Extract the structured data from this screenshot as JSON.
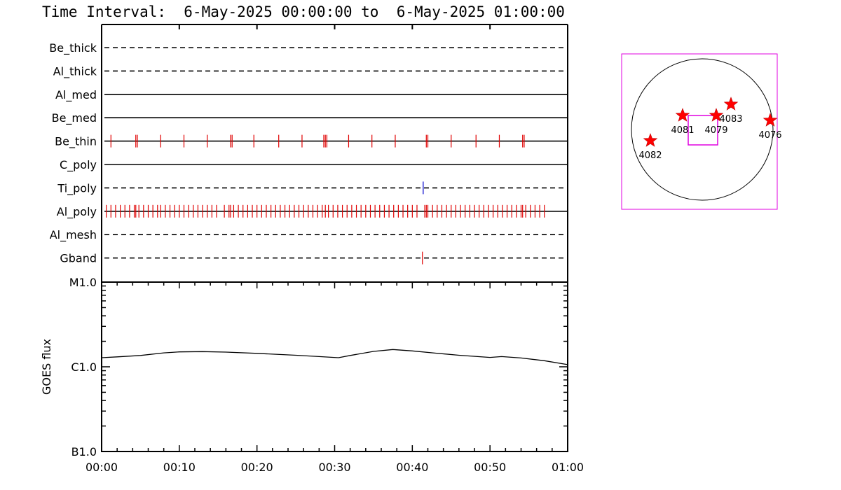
{
  "title": "Time Interval:  6-May-2025 00:00:00 to  6-May-2025 01:00:00",
  "colors": {
    "event": "#e00000",
    "ti_event": "#0000cc",
    "map_box": "#e000e0",
    "axis": "#000000",
    "star": "#ff0000"
  },
  "chart_data": [
    {
      "type": "event_timeline",
      "x_range_minutes": [
        0,
        60
      ],
      "channels": [
        {
          "name": "Be_thick",
          "line": "dashed",
          "events": []
        },
        {
          "name": "Al_thick",
          "line": "dashed",
          "events": []
        },
        {
          "name": "Al_med",
          "line": "solid",
          "events": []
        },
        {
          "name": "Be_med",
          "line": "solid",
          "events": []
        },
        {
          "name": "Be_thin",
          "line": "solid",
          "events": [
            1.2,
            4.4,
            4.6,
            7.6,
            10.6,
            13.6,
            16.6,
            16.8,
            19.6,
            22.8,
            25.8,
            28.6,
            28.8,
            29.0,
            31.8,
            34.8,
            37.8,
            41.8,
            42.0,
            45.0,
            48.2,
            51.2,
            54.2,
            54.4
          ]
        },
        {
          "name": "C_poly",
          "line": "solid",
          "events": []
        },
        {
          "name": "Ti_poly",
          "line": "dashed",
          "events": [
            41.4
          ],
          "event_color": "ti_event"
        },
        {
          "name": "Al_poly",
          "line": "solid",
          "events": [
            0.6,
            1.2,
            1.8,
            2.4,
            3.0,
            3.6,
            4.2,
            4.4,
            4.8,
            5.4,
            6.0,
            6.6,
            7.2,
            7.6,
            8.2,
            8.8,
            9.4,
            10.0,
            10.6,
            11.2,
            11.8,
            12.4,
            13.0,
            13.6,
            14.2,
            14.8,
            15.8,
            16.4,
            16.6,
            17.0,
            17.6,
            18.2,
            18.8,
            19.4,
            20.0,
            20.6,
            21.2,
            21.8,
            22.4,
            23.0,
            23.6,
            24.2,
            24.8,
            25.4,
            26.0,
            26.6,
            27.2,
            27.8,
            28.4,
            28.8,
            29.2,
            29.8,
            30.4,
            31.0,
            31.6,
            32.2,
            32.8,
            33.4,
            34.0,
            34.6,
            35.2,
            35.8,
            36.4,
            37.0,
            37.6,
            38.2,
            38.8,
            39.4,
            40.0,
            40.6,
            41.6,
            41.8,
            42.0,
            42.6,
            43.2,
            43.8,
            44.4,
            45.0,
            45.6,
            46.2,
            46.8,
            47.4,
            48.0,
            48.6,
            49.2,
            49.8,
            50.4,
            51.0,
            51.6,
            52.2,
            52.8,
            53.4,
            54.0,
            54.2,
            54.6,
            55.2,
            55.8,
            56.4,
            57.0
          ]
        },
        {
          "name": "Al_mesh",
          "line": "dashed",
          "events": []
        },
        {
          "name": "Gband",
          "line": "dashed",
          "events": [
            41.3
          ]
        }
      ]
    },
    {
      "type": "line",
      "ylabel": "GOES flux",
      "yscale": "log",
      "y_ticks": [
        "M1.0",
        "C1.0",
        "B1.0"
      ],
      "ylim": [
        1e-07,
        1e-05
      ],
      "x_ticks": [
        "00:00",
        "00:10",
        "00:20",
        "00:30",
        "00:40",
        "00:50",
        "01:00"
      ],
      "x_range_minutes": [
        0,
        60
      ],
      "series": [
        {
          "x": [
            0,
            2,
            5,
            8,
            10,
            13,
            16,
            20,
            25,
            28,
            30.5,
            32,
            35,
            37.5,
            40,
            43,
            46,
            50,
            51.5,
            54,
            57,
            60
          ],
          "y": [
            1.28e-06,
            1.31e-06,
            1.36e-06,
            1.46e-06,
            1.5e-06,
            1.51e-06,
            1.49e-06,
            1.44e-06,
            1.37e-06,
            1.32e-06,
            1.28e-06,
            1.36e-06,
            1.52e-06,
            1.6e-06,
            1.54e-06,
            1.45e-06,
            1.37e-06,
            1.29e-06,
            1.32e-06,
            1.27e-06,
            1.18e-06,
            1.06e-06
          ]
        }
      ]
    }
  ],
  "map": {
    "active_regions": [
      {
        "label": "4082"
      },
      {
        "label": "4081"
      },
      {
        "label": "4079"
      },
      {
        "label": "4083"
      },
      {
        "label": "4076"
      }
    ]
  }
}
